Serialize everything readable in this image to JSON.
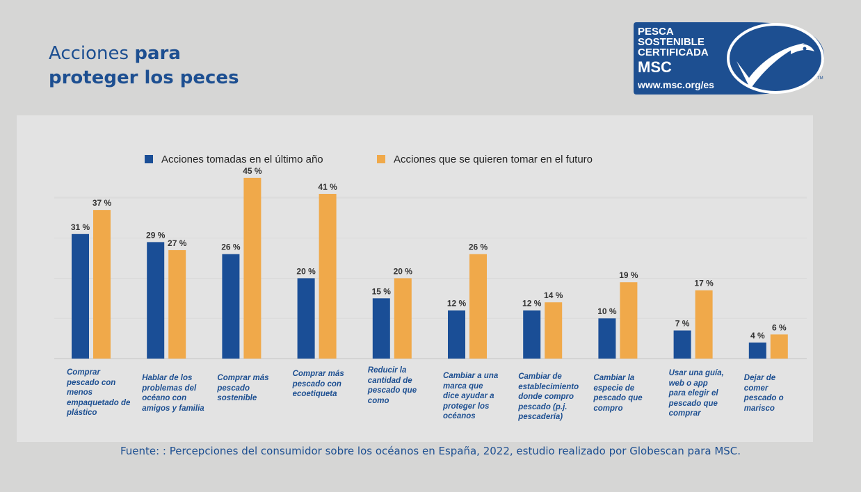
{
  "header": {
    "title_light": "Acciones ",
    "title_bold_1": "para",
    "title_bold_2": "proteger los peces"
  },
  "logo": {
    "line1": "PESCA",
    "line2": "SOSTENIBLE",
    "line3": "CERTIFICADA",
    "line4": "MSC",
    "url": "www.msc.org/es",
    "tm": "TM",
    "color": "#1d4f91"
  },
  "source": "Fuente: : Percepciones del consumidor sobre los océanos en España, 2022, estudio realizado por Globescan para MSC.",
  "chart_data": {
    "type": "bar",
    "categories": [
      "Comprar pescado con menos empaquetado de plástico",
      "Hablar de los problemas del océano con amigos y familia",
      "Comprar más pescado sostenible",
      "Comprar más pescado con ecoetiqueta",
      "Reducir la cantidad de pescado que como",
      "Cambiar a una marca que dice ayudar a proteger los océanos",
      "Cambiar de establecimiento donde compro pescado (p.j. pescadería)",
      "Cambiar la especie de pescado que compro",
      "Usar una guía, web o app para elegir el pescado que comprar",
      "Dejar de comer pescado o marisco"
    ],
    "category_lines": [
      [
        "Comprar",
        "pescado con",
        "menos",
        "empaquetado de",
        "plástico"
      ],
      [
        "Hablar de los",
        "problemas del",
        "océano con",
        "amigos y familia"
      ],
      [
        "Comprar más",
        "pescado",
        "sostenible"
      ],
      [
        "Comprar más",
        "pescado con",
        "ecoetiqueta"
      ],
      [
        "Reducir la",
        "cantidad de",
        "pescado que",
        "como"
      ],
      [
        "Cambiar a una",
        "marca que",
        "dice ayudar a",
        "proteger los",
        "océanos"
      ],
      [
        "Cambiar de",
        "establecimiento",
        "donde compro",
        "pescado (p.j.",
        "pescadería)"
      ],
      [
        "Cambiar la",
        "especie de",
        "pescado que",
        "compro"
      ],
      [
        "Usar una guía,",
        "web o app",
        "para elegir el",
        "pescado que",
        "comprar"
      ],
      [
        "Dejar de",
        "comer",
        "pescado o",
        "marisco"
      ]
    ],
    "series": [
      {
        "name": "Acciones tomadas en el último año",
        "values": [
          31,
          29,
          26,
          20,
          15,
          12,
          12,
          10,
          7,
          4
        ],
        "color": "#1a4e96"
      },
      {
        "name": "Acciones que se quieren tomar en el futuro",
        "values": [
          37,
          27,
          45,
          41,
          20,
          26,
          14,
          19,
          17,
          6
        ],
        "color": "#f0a94a"
      }
    ],
    "value_suffix": " %",
    "ylim": [
      0,
      50
    ],
    "grid": true,
    "legend_position": "top"
  }
}
